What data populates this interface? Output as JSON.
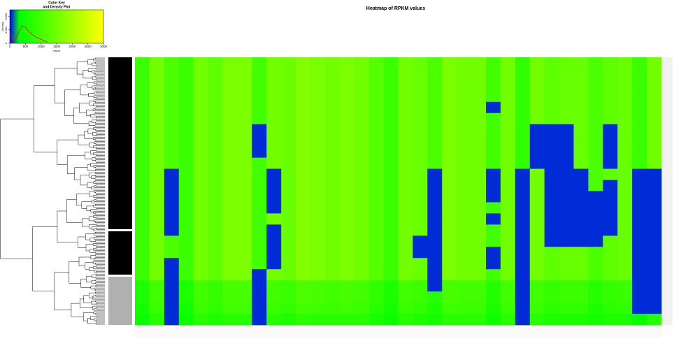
{
  "chart_data": [
    {
      "type": "heatmap",
      "title": "Heatmap of RPKM values",
      "colorscale": [
        {
          "value": 0,
          "color": "#0000ff"
        },
        {
          "value": 300,
          "color": "#00ff00"
        },
        {
          "value": 3000,
          "color": "#ffff00"
        }
      ],
      "x_categories": [
        null,
        null,
        null,
        null,
        null,
        null,
        null,
        null,
        null,
        null,
        null,
        null,
        null,
        null,
        null,
        null,
        null,
        null,
        null,
        null,
        null,
        null,
        null,
        null,
        null,
        null,
        null,
        null,
        null,
        null,
        null,
        null,
        null,
        null,
        null,
        null
      ],
      "y_categories": [
        null,
        null,
        null,
        null,
        null,
        null,
        null,
        null,
        null,
        null,
        null,
        null,
        null,
        null,
        null,
        null,
        null,
        null,
        null,
        null,
        null,
        null,
        null,
        null
      ],
      "values": [
        [
          900,
          1500,
          1100,
          900,
          1500,
          1300,
          1600,
          1600,
          1000,
          1500,
          1400,
          1700,
          1600,
          1500,
          1600,
          1500,
          1200,
          900,
          1500,
          1400,
          1100,
          1600,
          1500,
          1500,
          1000,
          1500,
          800,
          1500,
          1300,
          1400,
          1400,
          1100,
          1300,
          1400,
          900,
          1500
        ],
        [
          900,
          1500,
          1100,
          900,
          1500,
          1300,
          1600,
          1600,
          1000,
          1500,
          1400,
          1700,
          1600,
          1500,
          1600,
          1500,
          1200,
          900,
          1500,
          1400,
          1100,
          1600,
          1500,
          1500,
          1000,
          1500,
          800,
          1500,
          1300,
          1400,
          1400,
          1100,
          1300,
          1400,
          900,
          1500
        ],
        [
          900,
          1500,
          1100,
          900,
          1500,
          1300,
          1600,
          1600,
          1000,
          1500,
          1400,
          1700,
          1600,
          1500,
          1600,
          1500,
          1200,
          900,
          1500,
          1400,
          1100,
          1600,
          1500,
          1500,
          1000,
          1500,
          800,
          1500,
          1300,
          1400,
          1400,
          1100,
          1300,
          1400,
          900,
          1500
        ],
        [
          900,
          1500,
          1100,
          900,
          1500,
          1300,
          1600,
          1600,
          1000,
          1500,
          1400,
          1700,
          1600,
          1500,
          1600,
          1500,
          1200,
          900,
          1500,
          1400,
          1100,
          1600,
          1500,
          1500,
          1000,
          1500,
          800,
          1500,
          1300,
          1400,
          1400,
          1100,
          1300,
          1400,
          900,
          1500
        ],
        [
          900,
          1500,
          1100,
          900,
          1500,
          1300,
          1600,
          1600,
          1000,
          1500,
          1400,
          1700,
          1600,
          1500,
          1600,
          1500,
          1200,
          900,
          1500,
          1400,
          1100,
          1600,
          1500,
          1500,
          50,
          1500,
          800,
          1500,
          1300,
          1400,
          1400,
          1100,
          1300,
          1400,
          900,
          1500
        ],
        [
          900,
          1500,
          1100,
          900,
          1500,
          1300,
          1600,
          1600,
          1000,
          1500,
          1400,
          1700,
          1600,
          1500,
          1600,
          1500,
          1200,
          900,
          1500,
          1400,
          1100,
          1600,
          1500,
          1500,
          1000,
          1500,
          800,
          1500,
          1300,
          1400,
          1400,
          1100,
          1300,
          1400,
          900,
          1500
        ],
        [
          900,
          1500,
          1100,
          900,
          1500,
          1300,
          1600,
          1600,
          50,
          1500,
          1400,
          1700,
          1600,
          1500,
          1600,
          1500,
          1200,
          900,
          1500,
          1400,
          1100,
          1600,
          1500,
          1500,
          1000,
          1500,
          800,
          50,
          50,
          50,
          1400,
          1100,
          50,
          1400,
          900,
          1500
        ],
        [
          900,
          1500,
          1100,
          900,
          1500,
          1300,
          1600,
          1600,
          50,
          1500,
          1400,
          1700,
          1600,
          1500,
          1600,
          1500,
          1200,
          900,
          1500,
          1400,
          1100,
          1600,
          1500,
          1500,
          1000,
          1500,
          800,
          50,
          50,
          50,
          1400,
          1100,
          50,
          1400,
          900,
          1500
        ],
        [
          900,
          1500,
          1100,
          900,
          1500,
          1300,
          1600,
          1600,
          50,
          1500,
          1400,
          1700,
          1600,
          1500,
          1600,
          1500,
          1200,
          900,
          1500,
          1400,
          1100,
          1600,
          1500,
          1500,
          1000,
          1500,
          800,
          50,
          50,
          50,
          1400,
          1100,
          50,
          1400,
          900,
          1500
        ],
        [
          900,
          1500,
          1100,
          900,
          1500,
          1300,
          1600,
          1600,
          1000,
          1500,
          1400,
          1700,
          1600,
          1500,
          1600,
          1500,
          1200,
          900,
          1500,
          1400,
          1100,
          1600,
          1500,
          1500,
          1000,
          1500,
          800,
          50,
          50,
          50,
          1400,
          1100,
          50,
          1400,
          900,
          1500
        ],
        [
          900,
          1500,
          50,
          900,
          1500,
          1300,
          1600,
          1600,
          1000,
          50,
          1400,
          1700,
          1600,
          1500,
          1600,
          1500,
          1200,
          900,
          1500,
          1400,
          50,
          1600,
          1500,
          1500,
          50,
          1500,
          50,
          1500,
          50,
          50,
          50,
          1100,
          1300,
          1400,
          50,
          50
        ],
        [
          900,
          1500,
          50,
          900,
          1500,
          1300,
          1600,
          1600,
          1000,
          50,
          1400,
          1700,
          1600,
          1500,
          1600,
          1500,
          1200,
          900,
          1500,
          1400,
          50,
          1600,
          1500,
          1500,
          50,
          1500,
          50,
          1500,
          50,
          50,
          50,
          1100,
          50,
          1400,
          50,
          50
        ],
        [
          900,
          1500,
          50,
          900,
          1500,
          1300,
          1600,
          1600,
          1000,
          50,
          1400,
          1700,
          1600,
          1500,
          1600,
          1500,
          1200,
          900,
          1500,
          1400,
          50,
          1600,
          1500,
          1500,
          50,
          1500,
          50,
          1500,
          50,
          50,
          50,
          50,
          50,
          1400,
          50,
          50
        ],
        [
          900,
          1500,
          50,
          900,
          1500,
          1300,
          1600,
          1600,
          1000,
          50,
          1400,
          1700,
          1600,
          1500,
          1600,
          1500,
          1200,
          900,
          1500,
          1400,
          50,
          1600,
          1500,
          1500,
          1000,
          1500,
          50,
          1500,
          50,
          50,
          50,
          50,
          50,
          1400,
          50,
          50
        ],
        [
          900,
          1500,
          50,
          900,
          1500,
          1300,
          1600,
          1600,
          1000,
          1500,
          1400,
          1700,
          1600,
          1500,
          1600,
          1500,
          1200,
          900,
          1500,
          1400,
          50,
          1600,
          1500,
          1500,
          50,
          1500,
          50,
          1500,
          50,
          50,
          50,
          50,
          50,
          1400,
          50,
          50
        ],
        [
          900,
          1500,
          50,
          900,
          1500,
          1300,
          1600,
          1600,
          1000,
          50,
          1400,
          1700,
          1600,
          1500,
          1600,
          1500,
          1200,
          900,
          1500,
          1400,
          50,
          1600,
          1500,
          1500,
          1000,
          1500,
          50,
          1500,
          50,
          50,
          50,
          50,
          50,
          1400,
          50,
          50
        ],
        [
          900,
          1500,
          1100,
          900,
          1500,
          1300,
          1600,
          1600,
          1000,
          50,
          1400,
          1700,
          1600,
          1500,
          1600,
          1500,
          1200,
          900,
          1500,
          50,
          50,
          1600,
          1500,
          1500,
          1000,
          1500,
          50,
          1500,
          50,
          50,
          50,
          50,
          1300,
          1400,
          50,
          50
        ],
        [
          900,
          1500,
          1100,
          900,
          1500,
          1300,
          1600,
          1600,
          1000,
          50,
          1400,
          1700,
          1600,
          1500,
          1600,
          1500,
          1200,
          900,
          1500,
          50,
          50,
          1600,
          1500,
          1500,
          50,
          1500,
          50,
          1500,
          1300,
          1400,
          1400,
          1100,
          1300,
          1400,
          50,
          50
        ],
        [
          900,
          1500,
          50,
          900,
          1500,
          1300,
          1600,
          1600,
          1000,
          50,
          1400,
          1700,
          1600,
          1500,
          1600,
          1500,
          1200,
          900,
          1500,
          1400,
          50,
          1600,
          1500,
          1500,
          50,
          1500,
          50,
          1500,
          1300,
          1400,
          1400,
          1100,
          1300,
          1400,
          50,
          50
        ],
        [
          900,
          1500,
          50,
          900,
          1500,
          1300,
          1600,
          1600,
          50,
          1500,
          1400,
          1700,
          1600,
          1500,
          1600,
          1500,
          1200,
          900,
          1500,
          1400,
          50,
          1600,
          1500,
          1500,
          1000,
          1500,
          50,
          1500,
          1300,
          1400,
          1400,
          1100,
          1300,
          1400,
          50,
          50
        ],
        [
          600,
          1000,
          50,
          600,
          1000,
          850,
          1050,
          1050,
          50,
          1000,
          900,
          1100,
          1050,
          1000,
          1050,
          1000,
          800,
          600,
          1000,
          900,
          50,
          1050,
          1000,
          1000,
          650,
          1000,
          50,
          1000,
          850,
          900,
          900,
          700,
          850,
          900,
          50,
          50
        ],
        [
          600,
          1000,
          50,
          600,
          1000,
          850,
          1050,
          1050,
          50,
          1000,
          900,
          1100,
          1050,
          1000,
          1050,
          1000,
          800,
          600,
          1000,
          900,
          700,
          1050,
          1000,
          1000,
          650,
          1000,
          50,
          1000,
          850,
          900,
          900,
          700,
          850,
          900,
          50,
          50
        ],
        [
          500,
          900,
          50,
          500,
          900,
          750,
          950,
          950,
          50,
          900,
          800,
          1000,
          950,
          900,
          950,
          900,
          700,
          500,
          900,
          800,
          600,
          950,
          900,
          900,
          550,
          900,
          50,
          900,
          750,
          800,
          800,
          600,
          750,
          800,
          50,
          50
        ],
        [
          400,
          700,
          50,
          400,
          700,
          600,
          700,
          700,
          50,
          700,
          600,
          750,
          700,
          700,
          700,
          700,
          550,
          400,
          700,
          600,
          500,
          700,
          700,
          700,
          450,
          700,
          50,
          700,
          600,
          600,
          600,
          500,
          600,
          600,
          400,
          700
        ]
      ]
    },
    {
      "type": "line",
      "title": [
        "Color Key",
        "and Density Plot"
      ],
      "x_label": "Value",
      "y_label": "Density",
      "xlim": [
        0,
        3000
      ],
      "xticks": [
        0,
        500,
        1000,
        1500,
        2000,
        2500,
        3000
      ],
      "ylim": [
        0,
        0.0025
      ],
      "yticks": [
        0,
        0.001,
        0.002
      ],
      "x": [
        0,
        100,
        200,
        300,
        400,
        500,
        600,
        700,
        800,
        900,
        1000,
        1100,
        1200
      ],
      "series": [
        {
          "color": "#ff0000",
          "values": [
            0.0008,
            0.0002,
            0.0004,
            0.0009,
            0.0013,
            0.0012,
            0.0009,
            0.0007,
            0.0005,
            0.0004,
            0.0003,
            0.0002,
            0.0001
          ]
        }
      ]
    }
  ]
}
